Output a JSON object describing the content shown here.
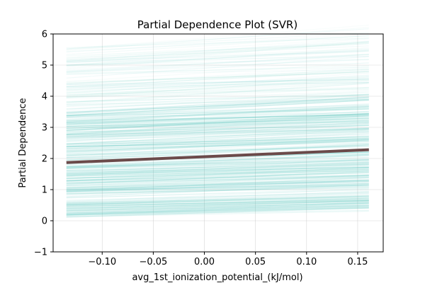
{
  "chart_data": {
    "type": "line",
    "title": "Partial Dependence Plot (SVR)",
    "xlabel": "avg_1st_ionization_potential_(kJ/mol)",
    "ylabel": "Partial Dependence",
    "xlim": [
      -0.148,
      0.175
    ],
    "ylim": [
      -1,
      6
    ],
    "xticks": [
      -0.1,
      -0.05,
      0.0,
      0.05,
      0.1,
      0.15
    ],
    "xtick_labels": [
      "−0.10",
      "−0.05",
      "0.00",
      "0.05",
      "0.10",
      "0.15"
    ],
    "yticks": [
      -1,
      0,
      1,
      2,
      3,
      4,
      5,
      6
    ],
    "ytick_labels": [
      "−1",
      "0",
      "1",
      "2",
      "3",
      "4",
      "5",
      "6"
    ],
    "grid": true,
    "x_range_of_lines": [
      -0.135,
      0.161
    ],
    "ice_lines": {
      "description_of_rendering": "many individual conditional expectation curves",
      "color": "#48c0b8",
      "count": 420,
      "start_value_range": [
        0.1,
        5.6
      ],
      "slope_range": [
        0.5,
        2.2
      ]
    },
    "average_line": {
      "color": "#6b4a4a",
      "x": [
        -0.135,
        0.161
      ],
      "y": [
        1.87,
        2.28
      ]
    }
  }
}
